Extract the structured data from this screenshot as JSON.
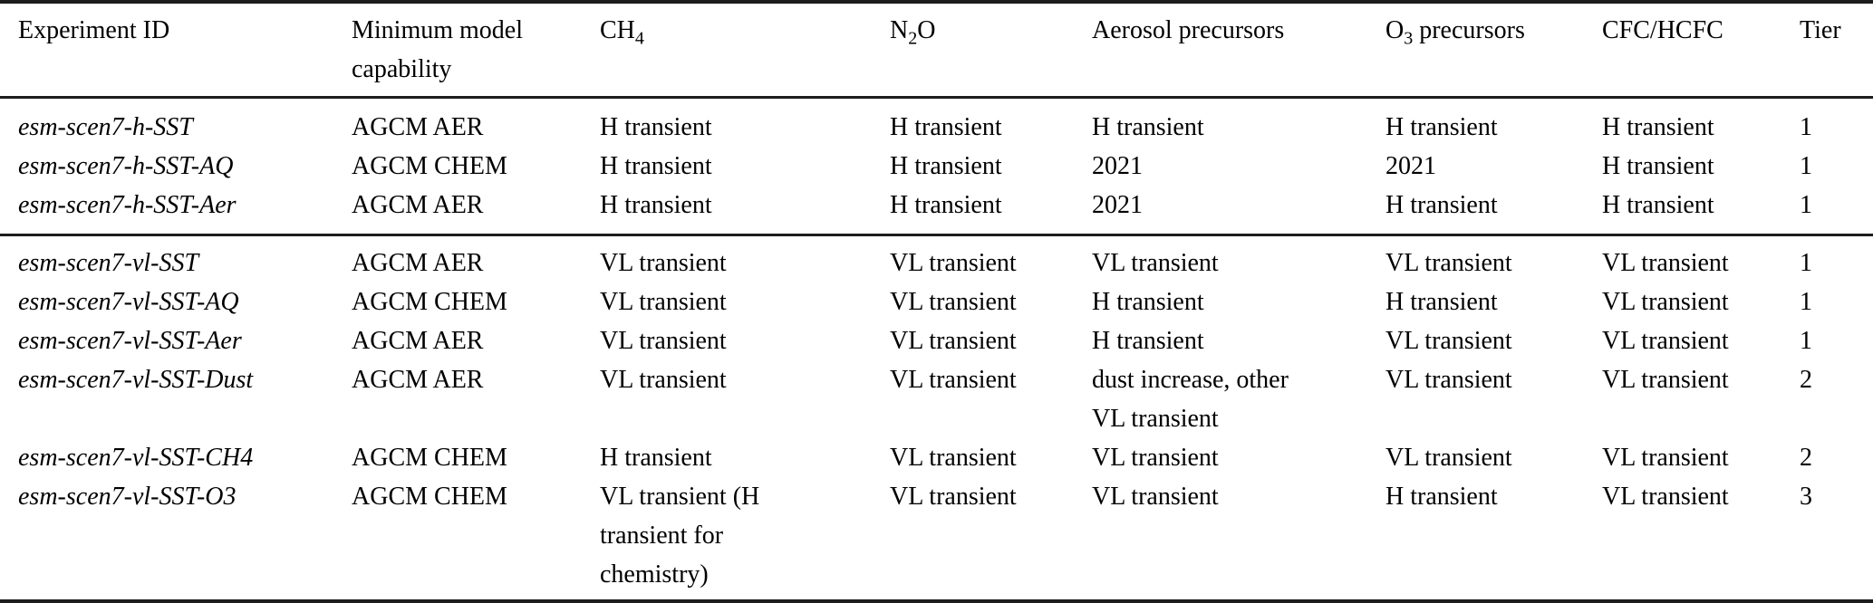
{
  "page": {
    "background_color": "#ffffff",
    "text_color": "#000000",
    "rule_color": "#1d1d1d"
  },
  "table": {
    "column_names": [
      "experiment-id",
      "minimum-model-capability",
      "ch4",
      "n2o",
      "aerosol-precursors",
      "o3-precursors",
      "cfc-hcfc",
      "tier"
    ],
    "headers": [
      {
        "segments": [
          {
            "text": "Experiment ID"
          }
        ]
      },
      {
        "segments": [
          {
            "text": "Minimum model\ncapability"
          }
        ]
      },
      {
        "segments": [
          {
            "text": "CH"
          },
          {
            "text": "4",
            "sub": true
          }
        ]
      },
      {
        "segments": [
          {
            "text": "N"
          },
          {
            "text": "2",
            "sub": true
          },
          {
            "text": "O"
          }
        ]
      },
      {
        "segments": [
          {
            "text": "Aerosol precursors"
          }
        ]
      },
      {
        "segments": [
          {
            "text": "O"
          },
          {
            "text": "3",
            "sub": true
          },
          {
            "text": " precursors"
          }
        ]
      },
      {
        "segments": [
          {
            "text": "CFC/HCFC"
          }
        ]
      },
      {
        "segments": [
          {
            "text": "Tier"
          }
        ]
      }
    ],
    "sections": [
      {
        "rows": [
          [
            "esm-scen7-h-SST",
            "AGCM AER",
            "H transient",
            "H transient",
            "H transient",
            "H transient",
            "H transient",
            "1"
          ],
          [
            "esm-scen7-h-SST-AQ",
            "AGCM CHEM",
            "H transient",
            "H transient",
            "2021",
            "2021",
            "H transient",
            "1"
          ],
          [
            "esm-scen7-h-SST-Aer",
            "AGCM AER",
            "H transient",
            "H transient",
            "2021",
            "H transient",
            "H transient",
            "1"
          ]
        ]
      },
      {
        "rows": [
          [
            "esm-scen7-vl-SST",
            "AGCM AER",
            "VL transient",
            "VL transient",
            "VL transient",
            "VL transient",
            "VL transient",
            "1"
          ],
          [
            "esm-scen7-vl-SST-AQ",
            "AGCM CHEM",
            "VL transient",
            "VL transient",
            "H transient",
            "H transient",
            "VL transient",
            "1"
          ],
          [
            "esm-scen7-vl-SST-Aer",
            "AGCM AER",
            "VL transient",
            "VL transient",
            "H transient",
            "VL transient",
            "VL transient",
            "1"
          ],
          [
            "esm-scen7-vl-SST-Dust",
            "AGCM AER",
            "VL transient",
            "VL transient",
            "dust increase, other\nVL transient",
            "VL transient",
            "VL transient",
            "2"
          ],
          [
            "esm-scen7-vl-SST-CH4",
            "AGCM CHEM",
            "H transient",
            "VL transient",
            "VL transient",
            "VL transient",
            "VL transient",
            "2"
          ],
          [
            "esm-scen7-vl-SST-O3",
            "AGCM CHEM",
            "VL transient (H\ntransient for\nchemistry)",
            "VL transient",
            "VL transient",
            "H transient",
            "VL transient",
            "3"
          ]
        ]
      }
    ]
  }
}
